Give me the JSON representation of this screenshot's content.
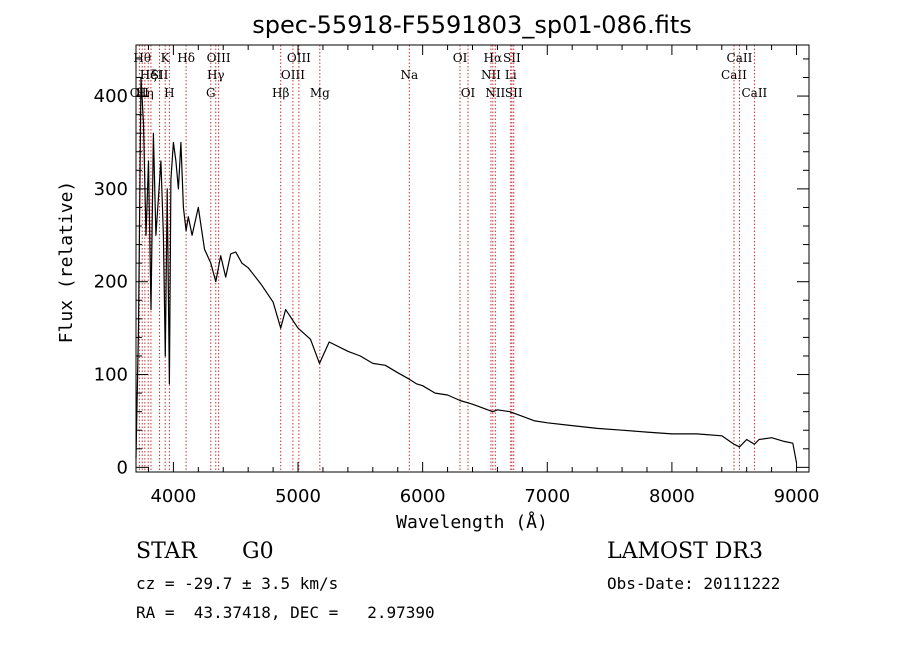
{
  "chart_data": {
    "type": "line",
    "title": "spec-55918-F5591803_sp01-086.fits",
    "xlabel": "Wavelength (Å)",
    "ylabel": "Flux (relative)",
    "xlim": [
      3700,
      9100
    ],
    "ylim": [
      -5,
      455
    ],
    "xticks": [
      4000,
      5000,
      6000,
      7000,
      8000,
      9000
    ],
    "yticks": [
      0,
      100,
      200,
      300,
      400
    ],
    "grid": false,
    "line_color": "#000000",
    "series": [
      {
        "name": "flux",
        "x": [
          3700,
          3720,
          3740,
          3760,
          3780,
          3800,
          3820,
          3840,
          3860,
          3880,
          3900,
          3920,
          3935,
          3950,
          3968,
          3980,
          4000,
          4020,
          4040,
          4060,
          4080,
          4102,
          4120,
          4150,
          4200,
          4250,
          4300,
          4340,
          4380,
          4420,
          4460,
          4500,
          4550,
          4600,
          4700,
          4800,
          4861,
          4900,
          5000,
          5100,
          5172,
          5250,
          5400,
          5500,
          5600,
          5700,
          5800,
          5893,
          5950,
          6000,
          6100,
          6200,
          6300,
          6400,
          6563,
          6600,
          6700,
          6800,
          6900,
          7000,
          7200,
          7400,
          7600,
          7800,
          8000,
          8200,
          8400,
          8498,
          8542,
          8600,
          8662,
          8700,
          8800,
          8900,
          8970,
          9000
        ],
        "y": [
          10,
          150,
          420,
          370,
          250,
          330,
          170,
          360,
          250,
          290,
          330,
          250,
          120,
          300,
          90,
          310,
          350,
          330,
          300,
          350,
          280,
          255,
          270,
          250,
          280,
          235,
          220,
          200,
          228,
          205,
          230,
          232,
          220,
          215,
          198,
          178,
          150,
          170,
          150,
          138,
          112,
          135,
          125,
          120,
          112,
          110,
          102,
          95,
          90,
          88,
          80,
          78,
          72,
          68,
          60,
          62,
          60,
          55,
          50,
          48,
          45,
          42,
          40,
          38,
          36,
          36,
          34,
          25,
          22,
          30,
          25,
          30,
          32,
          28,
          26,
          5
        ]
      }
    ],
    "lines": [
      {
        "x": 3727,
        "labels": [
          "OII"
        ],
        "row": 3
      },
      {
        "x": 3750,
        "labels": [
          "Hθ"
        ],
        "row": 1
      },
      {
        "x": 3771,
        "labels": [
          "Hη"
        ],
        "row": 3
      },
      {
        "x": 3798,
        "labels": [
          "Hζ"
        ],
        "row": 2
      },
      {
        "x": 3820,
        "labels": [
          "HeI"
        ],
        "row": 2
      },
      {
        "x": 3889,
        "labels": [
          "SII"
        ],
        "row": 2
      },
      {
        "x": 3934,
        "labels": [
          "K"
        ],
        "row": 1
      },
      {
        "x": 3968,
        "labels": [
          "H"
        ],
        "row": 3
      },
      {
        "x": 4102,
        "labels": [
          "Hδ"
        ],
        "row": 1
      },
      {
        "x": 4300,
        "labels": [
          "G"
        ],
        "row": 3
      },
      {
        "x": 4340,
        "labels": [
          "Hγ"
        ],
        "row": 2
      },
      {
        "x": 4363,
        "labels": [
          "OIII"
        ],
        "row": 1
      },
      {
        "x": 4861,
        "labels": [
          "Hβ"
        ],
        "row": 3
      },
      {
        "x": 4959,
        "labels": [
          "OIII"
        ],
        "row": 2
      },
      {
        "x": 5007,
        "labels": [
          "OIII"
        ],
        "row": 1
      },
      {
        "x": 5175,
        "labels": [
          "Mg"
        ],
        "row": 3
      },
      {
        "x": 5893,
        "labels": [
          "Na"
        ],
        "row": 2
      },
      {
        "x": 6300,
        "labels": [
          "OI"
        ],
        "row": 1
      },
      {
        "x": 6364,
        "labels": [
          "OI"
        ],
        "row": 3
      },
      {
        "x": 6548,
        "labels": [
          "NII"
        ],
        "row": 2
      },
      {
        "x": 6563,
        "labels": [
          "Hα"
        ],
        "row": 1
      },
      {
        "x": 6583,
        "labels": [
          "NII"
        ],
        "row": 3
      },
      {
        "x": 6707,
        "labels": [
          "Li"
        ],
        "row": 2
      },
      {
        "x": 6716,
        "labels": [
          "SII"
        ],
        "row": 1
      },
      {
        "x": 6731,
        "labels": [
          "SII"
        ],
        "row": 3
      },
      {
        "x": 8498,
        "labels": [
          "CaII"
        ],
        "row": 2
      },
      {
        "x": 8542,
        "labels": [
          "CaII"
        ],
        "row": 1
      },
      {
        "x": 8662,
        "labels": [
          "CaII"
        ],
        "row": 3
      }
    ]
  },
  "info": {
    "object_class": "STAR",
    "subclass": "G0",
    "survey": "LAMOST DR3",
    "redshift": "cz = -29.7 ± 3.5 km/s",
    "obs_date": "Obs-Date: 20111222",
    "coords": "RA =  43.37418, DEC =   2.97390"
  }
}
